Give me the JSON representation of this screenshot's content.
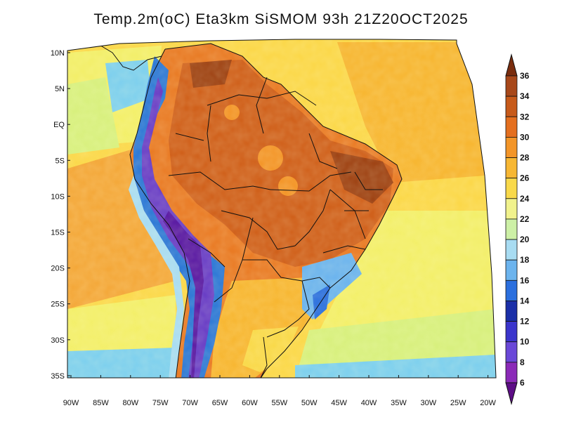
{
  "title": "Temp.2m(oC) Eta3km SiSMOM 93h 21Z20OCT2025",
  "colors": {
    "ocean_warm": "#f7b733",
    "ocean_mid": "#fbd84a",
    "ocean_cool": "#f3ef6a",
    "ocean_pale": "#d8f07e",
    "ocean_cold": "#7ed0ee",
    "land_hot": "#e97b25",
    "land_hotter": "#d0611c",
    "land_hottest": "#9f4415",
    "andes_cold": "#2d78d6",
    "andes_colder": "#6a3fc6",
    "andes_coldest": "#5a1aa3",
    "border": "#111111"
  },
  "map": {
    "lon_labels": [
      "90W",
      "85W",
      "80W",
      "75W",
      "70W",
      "65W",
      "60W",
      "55W",
      "50W",
      "45W",
      "40W",
      "35W",
      "30W",
      "25W",
      "20W"
    ],
    "lat_labels": [
      "10N",
      "5N",
      "EQ",
      "5S",
      "10S",
      "15S",
      "20S",
      "25S",
      "30S",
      "35S"
    ]
  },
  "colorbar": {
    "levels": [
      "36",
      "34",
      "32",
      "30",
      "28",
      "26",
      "24",
      "22",
      "20",
      "18",
      "16",
      "14",
      "12",
      "10",
      "8",
      "6"
    ],
    "colors": [
      "#7a2d0e",
      "#a8481a",
      "#c75a1a",
      "#e46f1f",
      "#f39528",
      "#f7b733",
      "#f9d94a",
      "#f1f28c",
      "#cdf0a6",
      "#a8dcf2",
      "#6cb4ee",
      "#2b6fde",
      "#1b2fa8",
      "#3b35cc",
      "#6a48d8",
      "#8b2ab8",
      "#5d0d86"
    ]
  }
}
